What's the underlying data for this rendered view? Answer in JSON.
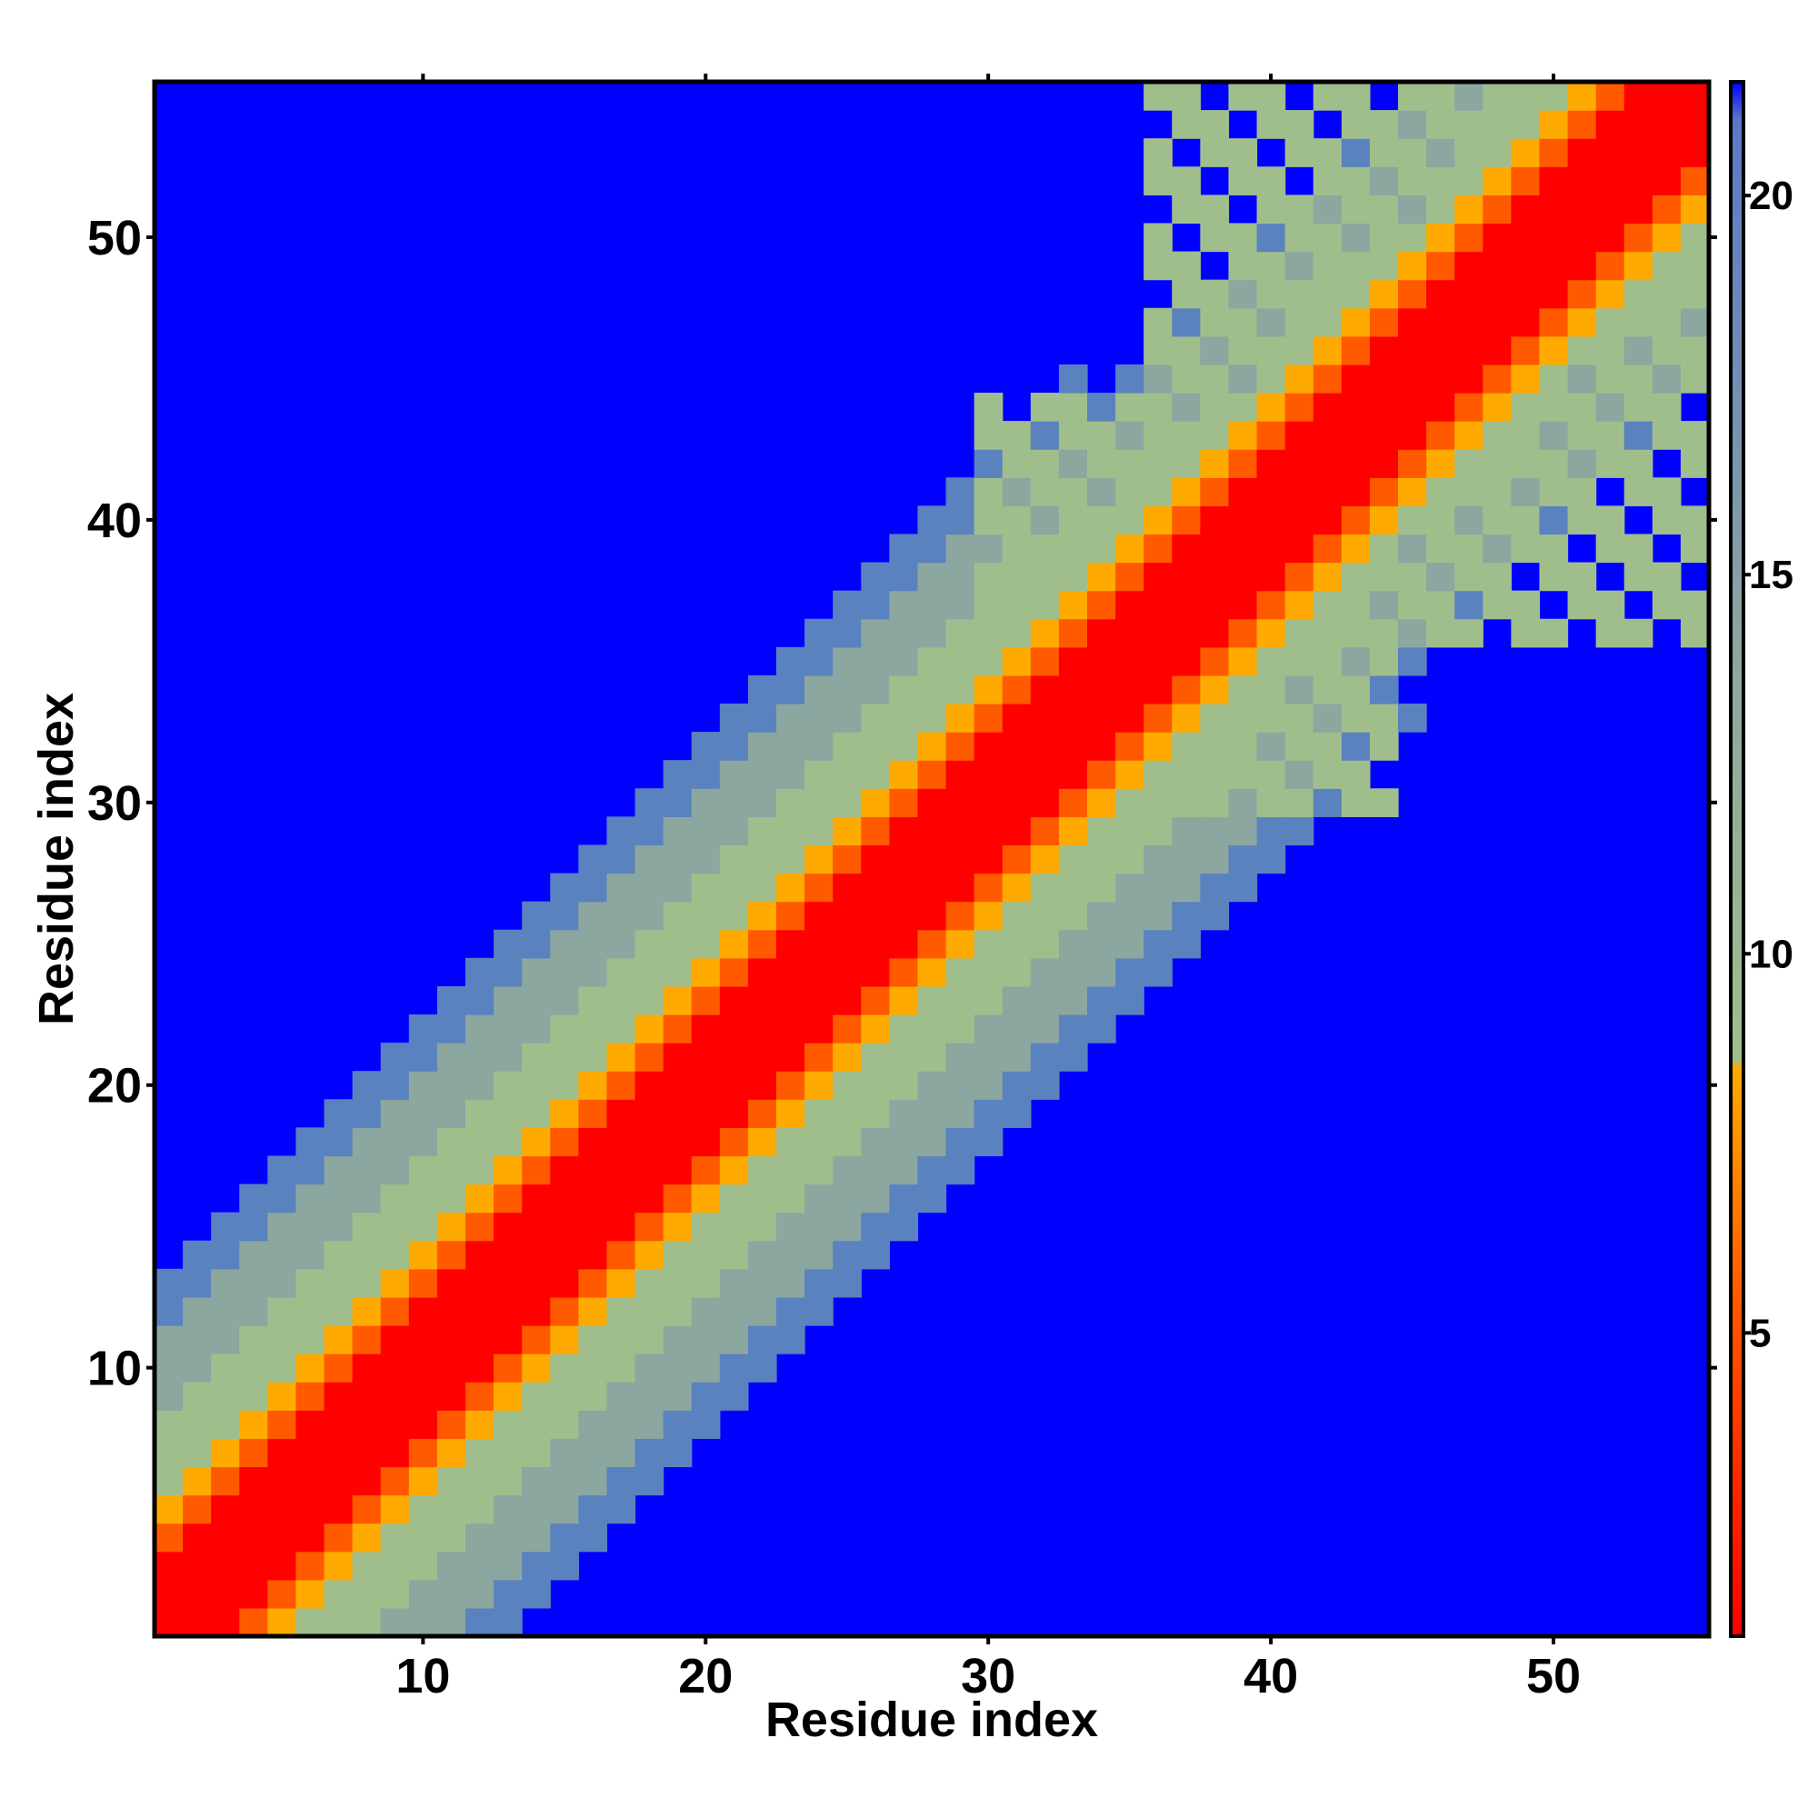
{
  "chart_data": {
    "type": "heatmap",
    "title": "",
    "xlabel": "Residue index",
    "ylabel": "Residue index",
    "xlim": [
      0.5,
      55.5
    ],
    "ylim": [
      0.5,
      55.5
    ],
    "x_ticks": [
      10,
      20,
      30,
      40,
      50
    ],
    "y_ticks": [
      10,
      20,
      30,
      40,
      50
    ],
    "colorbar": {
      "ticks": [
        5,
        10,
        15,
        20
      ],
      "range": [
        1,
        21.5
      ],
      "stops": [
        {
          "value": 1,
          "color": "#ff0000"
        },
        {
          "value": 5.5,
          "color": "#ff5a00"
        },
        {
          "value": 8.5,
          "color": "#ffaa00"
        },
        {
          "value": 8.6,
          "color": "#a0be8c"
        },
        {
          "value": 14,
          "color": "#8ca6a0"
        },
        {
          "value": 21,
          "color": "#5a78c8"
        },
        {
          "value": 21.5,
          "color": "#0000ff"
        }
      ]
    },
    "grid": false,
    "legend": "colorbar-right",
    "n_residues": 55,
    "background_color": "#0000ff",
    "colors": {
      "band1": "#ff0000",
      "band2": "#ff5a00",
      "band3": "#ffaa00",
      "band4": "#a0be8c",
      "band5": "#8ca6a0",
      "band6": "#5a82be",
      "far": "#0000ff"
    },
    "band_offsets": {
      "band1_max": 2,
      "band2_max": 3,
      "band3_max": 4,
      "band4_max": 7,
      "band5_max": 10,
      "band6_max": 12
    },
    "contact_patches": [
      {
        "i_from": 36,
        "i_to": 52,
        "j_from": 44,
        "j_to": 55,
        "color": "#a0be8c"
      },
      {
        "i_from": 30,
        "i_to": 40,
        "j_from": 36,
        "j_to": 44,
        "color": "#a0be8c"
      }
    ]
  }
}
